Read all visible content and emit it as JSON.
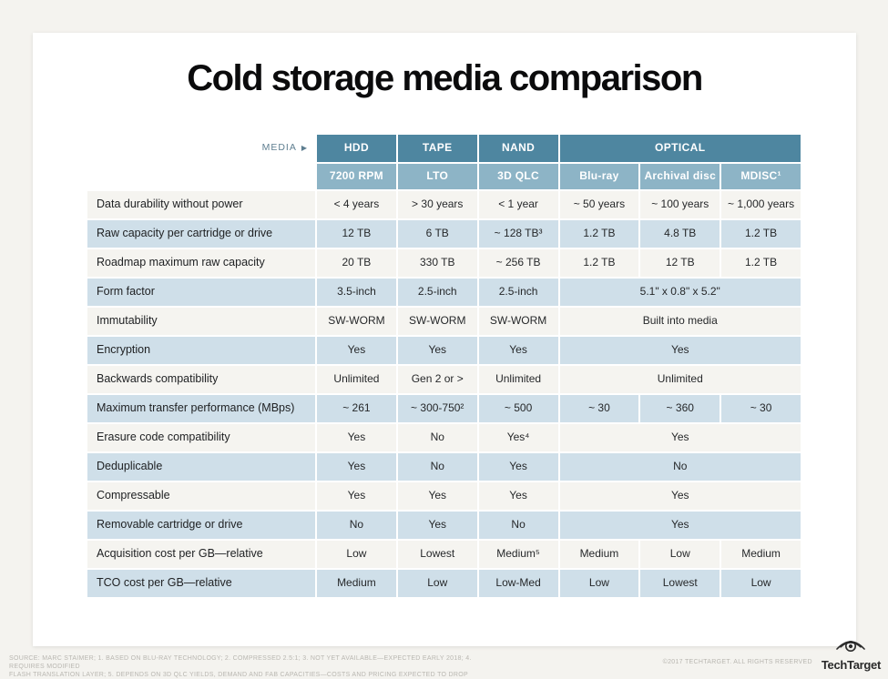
{
  "page": {
    "title": "Cold storage media comparison"
  },
  "table": {
    "media_label": "MEDIA",
    "media_arrow": "▶",
    "group_headers": [
      {
        "label": "HDD",
        "span": 1
      },
      {
        "label": "TAPE",
        "span": 1
      },
      {
        "label": "NAND",
        "span": 1
      },
      {
        "label": "OPTICAL",
        "span": 3
      }
    ],
    "sub_headers": [
      "7200 RPM",
      "LTO",
      "3D QLC",
      "Blu-ray",
      "Archival disc",
      "MDISC¹"
    ]
  },
  "chart_data": {
    "type": "table",
    "title": "Cold storage media comparison",
    "column_groups": [
      "HDD",
      "TAPE",
      "NAND",
      "OPTICAL",
      "OPTICAL",
      "OPTICAL"
    ],
    "columns": [
      "7200 RPM",
      "LTO",
      "3D QLC",
      "Blu-ray",
      "Archival disc",
      "MDISC¹"
    ],
    "rows": [
      {
        "label": "Data durability without power",
        "optical_merged": false,
        "cells": [
          "< 4 years",
          "> 30 years",
          "< 1 year",
          "~ 50 years",
          "~ 100 years",
          "~ 1,000 years"
        ]
      },
      {
        "label": "Raw capacity per cartridge or drive",
        "optical_merged": false,
        "cells": [
          "12 TB",
          "6 TB",
          "~ 128 TB³",
          "1.2 TB",
          "4.8 TB",
          "1.2 TB"
        ]
      },
      {
        "label": "Roadmap maximum raw capacity",
        "optical_merged": false,
        "cells": [
          "20 TB",
          "330 TB",
          "~ 256 TB",
          "1.2 TB",
          "12 TB",
          "1.2 TB"
        ]
      },
      {
        "label": "Form factor",
        "optical_merged": true,
        "cells": [
          "3.5-inch",
          "2.5-inch",
          "2.5-inch",
          "5.1\" x 0.8\" x 5.2\""
        ]
      },
      {
        "label": "Immutability",
        "optical_merged": true,
        "cells": [
          "SW-WORM",
          "SW-WORM",
          "SW-WORM",
          "Built into media"
        ]
      },
      {
        "label": "Encryption",
        "optical_merged": true,
        "cells": [
          "Yes",
          "Yes",
          "Yes",
          "Yes"
        ]
      },
      {
        "label": "Backwards compatibility",
        "optical_merged": true,
        "cells": [
          "Unlimited",
          "Gen 2 or >",
          "Unlimited",
          "Unlimited"
        ]
      },
      {
        "label": "Maximum transfer performance (MBps)",
        "optical_merged": false,
        "cells": [
          "~ 261",
          "~ 300-750²",
          "~ 500",
          "~ 30",
          "~ 360",
          "~ 30"
        ]
      },
      {
        "label": "Erasure code compatibility",
        "optical_merged": true,
        "cells": [
          "Yes",
          "No",
          "Yes⁴",
          "Yes"
        ]
      },
      {
        "label": "Deduplicable",
        "optical_merged": true,
        "cells": [
          "Yes",
          "No",
          "Yes",
          "No"
        ]
      },
      {
        "label": "Compressable",
        "optical_merged": true,
        "cells": [
          "Yes",
          "Yes",
          "Yes",
          "Yes"
        ]
      },
      {
        "label": "Removable cartridge or drive",
        "optical_merged": true,
        "cells": [
          "No",
          "Yes",
          "No",
          "Yes"
        ]
      },
      {
        "label": "Acquisition cost per GB—relative",
        "optical_merged": false,
        "cells": [
          "Low",
          "Lowest",
          "Medium⁵",
          "Medium",
          "Low",
          "Medium"
        ]
      },
      {
        "label": "TCO cost per GB—relative",
        "optical_merged": false,
        "cells": [
          "Medium",
          "Low",
          "Low-Med",
          "Low",
          "Lowest",
          "Low"
        ]
      }
    ]
  },
  "footer": {
    "source_line1": "SOURCE: MARC STAIMER; 1. BASED ON BLU-RAY TECHNOLOGY; 2. COMPRESSED 2.5:1; 3. NOT YET AVAILABLE—EXPECTED EARLY 2018; 4. REQUIRES MODIFIED",
    "source_line2": "FLASH TRANSLATION LAYER; 5. DEPENDS ON 3D QLC YIELDS, DEMAND AND FAB CAPACITIES—COSTS AND PRICING EXPECTED TO DROP",
    "copyright": "©2017 TECHTARGET. ALL RIGHTS RESERVED",
    "logo_text": "TechTarget"
  },
  "colors": {
    "header_dark": "#4e86a0",
    "header_light": "#8db4c6",
    "row_blue": "#cfdfe9",
    "row_offwhite": "#f5f4f0",
    "page_bg": "#f4f3ef",
    "card_bg": "#ffffff",
    "media_label": "#5e7e90",
    "footnote": "#b9b7b1"
  }
}
